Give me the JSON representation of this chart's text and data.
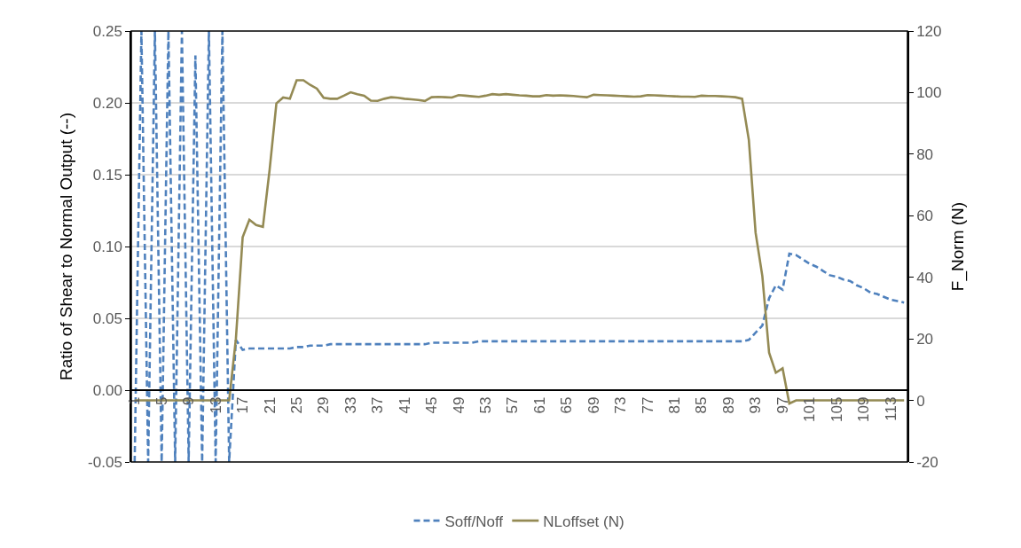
{
  "chart_data": {
    "type": "line",
    "ylabel": "Ratio of Shear to Normal Output (--)",
    "y2label": "F_Norm (N)",
    "categories": [
      "1",
      null,
      null,
      null,
      "5",
      null,
      null,
      null,
      "9",
      null,
      null,
      null,
      "13",
      null,
      null,
      null,
      "17",
      null,
      null,
      null,
      "21",
      null,
      null,
      null,
      "25",
      null,
      null,
      null,
      "29",
      null,
      null,
      null,
      "33",
      null,
      null,
      null,
      "37",
      null,
      null,
      null,
      "41",
      null,
      null,
      null,
      "45",
      null,
      null,
      null,
      "49",
      null,
      null,
      null,
      "53",
      null,
      null,
      null,
      "57",
      null,
      null,
      null,
      "61",
      null,
      null,
      null,
      "65",
      null,
      null,
      null,
      "69",
      null,
      null,
      null,
      "73",
      null,
      null,
      null,
      "77",
      null,
      null,
      null,
      "81",
      null,
      null,
      null,
      "85",
      null,
      null,
      null,
      "89",
      null,
      null,
      null,
      "93",
      null,
      null,
      null,
      "97",
      null,
      null,
      null,
      "101",
      null,
      null,
      null,
      "105",
      null,
      null,
      null,
      "109",
      null,
      null,
      null,
      "113",
      null,
      null
    ],
    "series": [
      {
        "name": "Soff/Noff",
        "color": "#4f81bd",
        "line_style": "dashed",
        "values": [
          -0.05,
          0.25,
          -0.05,
          0.25,
          -0.05,
          0.25,
          -0.05,
          0.25,
          -0.05,
          0.233,
          -0.05,
          0.25,
          -0.05,
          0.25,
          -0.05,
          0.035,
          0.028,
          0.029,
          0.029,
          0.029,
          0.029,
          0.029,
          0.029,
          0.029,
          0.03,
          0.03,
          0.031,
          0.031,
          0.031,
          0.032,
          0.032,
          0.032,
          0.032,
          0.032,
          0.032,
          0.032,
          0.032,
          0.032,
          0.032,
          0.032,
          0.032,
          0.032,
          0.032,
          0.032,
          0.033,
          0.033,
          0.033,
          0.033,
          0.033,
          0.033,
          0.033,
          0.034,
          0.034,
          0.034,
          0.034,
          0.034,
          0.034,
          0.034,
          0.034,
          0.034,
          0.034,
          0.034,
          0.034,
          0.034,
          0.034,
          0.034,
          0.034,
          0.034,
          0.034,
          0.034,
          0.034,
          0.034,
          0.034,
          0.034,
          0.034,
          0.034,
          0.034,
          0.034,
          0.034,
          0.034,
          0.034,
          0.034,
          0.034,
          0.034,
          0.034,
          0.034,
          0.034,
          0.034,
          0.034,
          0.034,
          0.034,
          0.035,
          0.04,
          0.045,
          0.064,
          0.073,
          0.07,
          0.095,
          0.094,
          0.091,
          0.088,
          0.086,
          0.083,
          0.08,
          0.079,
          0.077,
          0.076,
          0.073,
          0.071,
          0.068,
          0.067,
          0.065,
          0.063,
          0.062,
          0.061
        ]
      },
      {
        "name": "NLoffset (N)",
        "color": "#948a54",
        "line_style": "solid",
        "axis": "y2",
        "values": [
          0,
          0,
          0,
          0,
          0,
          0,
          0,
          0,
          0,
          0,
          0,
          0,
          0,
          0,
          0,
          20,
          53,
          58.7,
          57,
          56.4,
          75,
          96.5,
          98.4,
          98,
          104,
          104,
          102.5,
          101.3,
          98.3,
          98,
          98,
          99,
          100.1,
          99.5,
          99,
          97.4,
          97.3,
          98,
          98.5,
          98.3,
          98,
          97.8,
          97.6,
          97.3,
          98.5,
          98.6,
          98.5,
          98.4,
          99.2,
          99,
          98.8,
          98.6,
          99,
          99.5,
          99.3,
          99.5,
          99.3,
          99.1,
          99,
          98.8,
          98.8,
          99.2,
          99,
          99.1,
          99,
          98.9,
          98.7,
          98.5,
          99.3,
          99.2,
          99.1,
          99,
          98.9,
          98.8,
          98.7,
          98.8,
          99.2,
          99.1,
          99,
          98.9,
          98.8,
          98.7,
          98.7,
          98.6,
          99,
          98.9,
          98.9,
          98.8,
          98.7,
          98.5,
          98,
          84.6,
          54.5,
          40.4,
          15.5,
          9,
          10.4,
          -1,
          0,
          0,
          0,
          0,
          0,
          0,
          0,
          0,
          0,
          0,
          0,
          0,
          0,
          0,
          0,
          0,
          0
        ]
      }
    ],
    "ylim": [
      -0.05,
      0.25
    ],
    "yticks": [
      {
        "value": -0.05,
        "label": "-0.05"
      },
      {
        "value": 0,
        "label": "0.00"
      },
      {
        "value": 0.05,
        "label": "0.05"
      },
      {
        "value": 0.1,
        "label": "0.10"
      },
      {
        "value": 0.15,
        "label": "0.15"
      },
      {
        "value": 0.2,
        "label": "0.20"
      },
      {
        "value": 0.25,
        "label": "0.25"
      }
    ],
    "y2lim": [
      -20,
      120
    ],
    "y2ticks": [
      -20,
      0,
      20,
      40,
      60,
      80,
      100,
      120
    ],
    "grid": "y",
    "legend": "bottom",
    "marker": "none"
  }
}
